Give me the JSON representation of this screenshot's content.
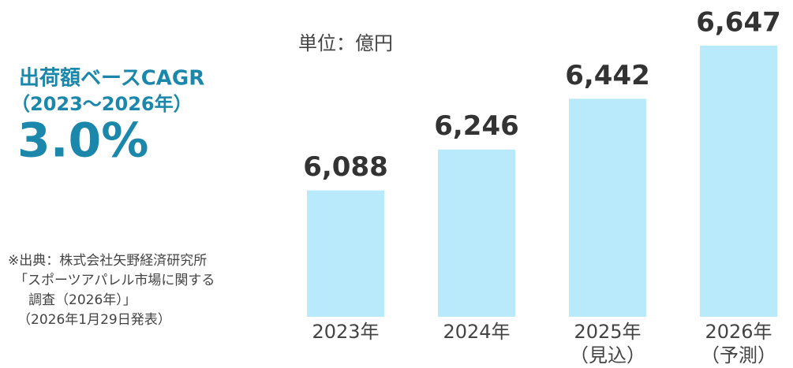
{
  "chart_data": {
    "type": "bar",
    "unit_label": "単位：億円",
    "annotation": {
      "title": "出荷額ベースCAGR",
      "period": "（2023～2026年）",
      "value": "3.0%"
    },
    "source": [
      "※出典：株式会社矢野経済研究所",
      "「スポーツアパレル市場に関する",
      "調査（2026年）」",
      "（2026年1月29日発表）"
    ],
    "categories": [
      [
        "2023年"
      ],
      [
        "2024年"
      ],
      [
        "2025年",
        "（見込）"
      ],
      [
        "2026年",
        "（予測）"
      ]
    ],
    "values": [
      6088,
      6246,
      6442,
      6647
    ],
    "value_labels": [
      "6,088",
      "6,246",
      "6,442",
      "6,647"
    ],
    "color": "#b8eafb",
    "ylim": [
      5600,
      6650
    ]
  }
}
